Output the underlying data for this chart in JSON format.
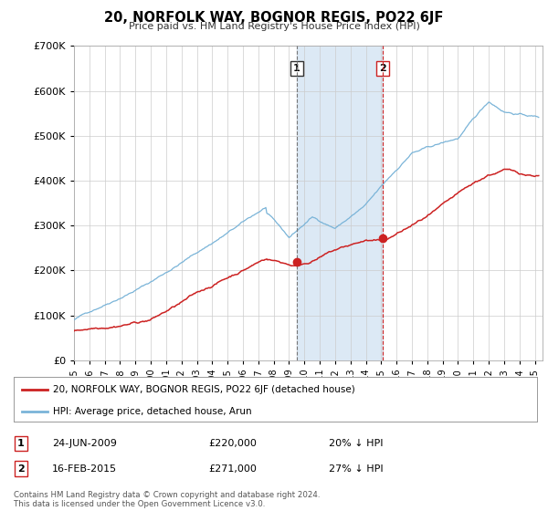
{
  "title": "20, NORFOLK WAY, BOGNOR REGIS, PO22 6JF",
  "subtitle": "Price paid vs. HM Land Registry's House Price Index (HPI)",
  "ylim": [
    0,
    700000
  ],
  "yticks": [
    0,
    100000,
    200000,
    300000,
    400000,
    500000,
    600000,
    700000
  ],
  "xlim_start": 1995.0,
  "xlim_end": 2025.5,
  "hpi_color": "#7ab4d8",
  "price_color": "#cc2222",
  "marker1_date": 2009.48,
  "marker1_price": 220000,
  "marker2_date": 2015.12,
  "marker2_price": 271000,
  "marker1_text": "24-JUN-2009",
  "marker1_price_text": "£220,000",
  "marker1_pct": "20% ↓ HPI",
  "marker2_text": "16-FEB-2015",
  "marker2_price_text": "£271,000",
  "marker2_pct": "27% ↓ HPI",
  "legend_line1": "20, NORFOLK WAY, BOGNOR REGIS, PO22 6JF (detached house)",
  "legend_line2": "HPI: Average price, detached house, Arun",
  "footer_line1": "Contains HM Land Registry data © Crown copyright and database right 2024.",
  "footer_line2": "This data is licensed under the Open Government Licence v3.0.",
  "background_color": "#ffffff",
  "grid_color": "#cccccc",
  "shaded_region_color": "#dce9f5"
}
